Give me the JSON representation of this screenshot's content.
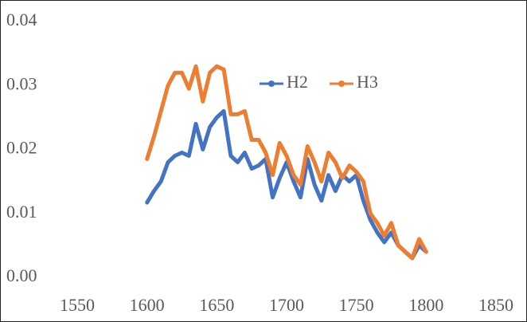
{
  "chart_data": {
    "type": "line",
    "x": [
      1600,
      1605,
      1610,
      1615,
      1620,
      1625,
      1630,
      1635,
      1640,
      1645,
      1650,
      1655,
      1660,
      1665,
      1670,
      1675,
      1680,
      1685,
      1690,
      1695,
      1700,
      1705,
      1710,
      1715,
      1720,
      1725,
      1730,
      1735,
      1740,
      1745,
      1750,
      1755,
      1760,
      1765,
      1770,
      1775,
      1780,
      1785,
      1790,
      1795,
      1800
    ],
    "series": [
      {
        "name": "H2",
        "color": "#4472c4",
        "values": [
          0.0117,
          0.0135,
          0.015,
          0.018,
          0.019,
          0.0195,
          0.019,
          0.024,
          0.02,
          0.0235,
          0.025,
          0.026,
          0.019,
          0.018,
          0.0195,
          0.017,
          0.0175,
          0.0185,
          0.0125,
          0.0155,
          0.018,
          0.015,
          0.0125,
          0.0185,
          0.0145,
          0.012,
          0.016,
          0.0135,
          0.016,
          0.015,
          0.016,
          0.012,
          0.009,
          0.007,
          0.0055,
          0.007,
          0.005,
          0.004,
          0.003,
          0.005,
          0.004
        ]
      },
      {
        "name": "H3",
        "color": "#ed7d31",
        "values": [
          0.0185,
          0.022,
          0.026,
          0.03,
          0.032,
          0.032,
          0.0295,
          0.033,
          0.0275,
          0.032,
          0.033,
          0.0325,
          0.0255,
          0.0255,
          0.026,
          0.0215,
          0.0215,
          0.0195,
          0.016,
          0.021,
          0.019,
          0.016,
          0.0145,
          0.0205,
          0.018,
          0.015,
          0.0195,
          0.018,
          0.0155,
          0.0175,
          0.0165,
          0.015,
          0.01,
          0.0085,
          0.0065,
          0.0085,
          0.005,
          0.004,
          0.003,
          0.006,
          0.004
        ]
      }
    ],
    "xlim": [
      1550,
      1850
    ],
    "xticks": [
      1550,
      1600,
      1650,
      1700,
      1750,
      1800,
      1850
    ],
    "ylim": [
      0,
      0.04
    ],
    "yticks": [
      {
        "value": 0,
        "label": "0.00"
      },
      0.01,
      0.02,
      0.03,
      0.04
    ],
    "grid": false,
    "legend": "top"
  }
}
